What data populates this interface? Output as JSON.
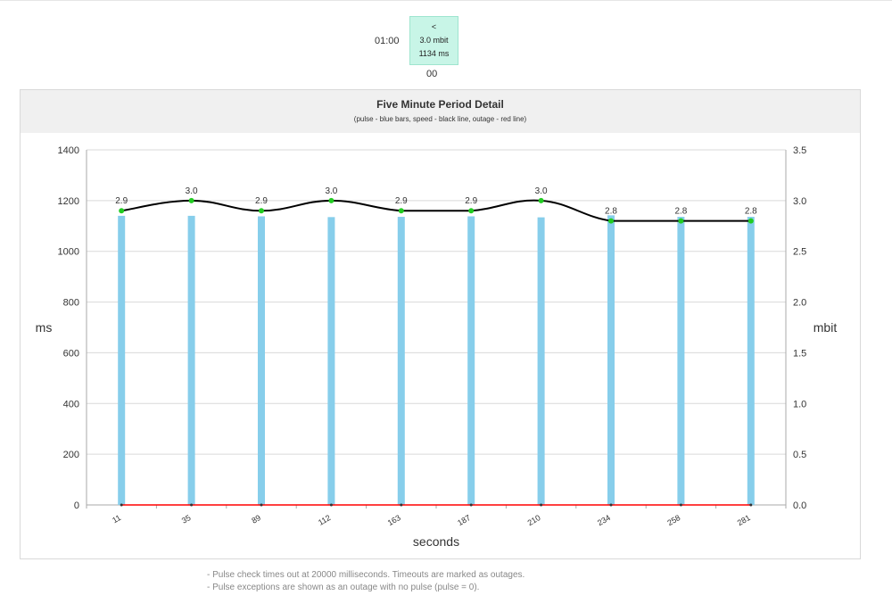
{
  "summary": {
    "time": "01:00",
    "arrow": "<",
    "speed": "3.0 mbit",
    "pulse": "1134 ms",
    "sublabel": "00",
    "color": "#c8f5e7"
  },
  "panel": {
    "title": "Five Minute Period Detail",
    "subtitle": "(pulse - blue bars, speed - black line, outage - red line)"
  },
  "chart_data": {
    "type": "bar",
    "title": "Five Minute Period Detail",
    "subtitle": "(pulse - blue bars, speed - black line, outage - red line)",
    "xlabel": "seconds",
    "ylabel": "ms",
    "ylabel_right": "mbit",
    "ylim": [
      0,
      1400
    ],
    "ylim_right": [
      0,
      3.5
    ],
    "yticks": [
      0,
      200,
      400,
      600,
      800,
      1000,
      1200,
      1400
    ],
    "yticks_right": [
      "0.0",
      "0.5",
      "1.0",
      "1.5",
      "2.0",
      "2.5",
      "3.0",
      "3.5"
    ],
    "categories": [
      "11",
      "35",
      "89",
      "112",
      "163",
      "187",
      "210",
      "234",
      "258",
      "281"
    ],
    "grid": true,
    "series": [
      {
        "name": "pulse",
        "kind": "bar",
        "axis": "left",
        "color": "#87ceeb",
        "values": [
          1140,
          1140,
          1138,
          1135,
          1136,
          1138,
          1134,
          1142,
          1136,
          1136
        ]
      },
      {
        "name": "speed",
        "kind": "line",
        "axis": "right",
        "color": "#000000",
        "marker_color": "#22cc22",
        "values": [
          2.9,
          3.0,
          2.9,
          3.0,
          2.9,
          2.9,
          3.0,
          2.8,
          2.8,
          2.8
        ],
        "labels": [
          "2.9",
          "3.0",
          "2.9",
          "3.0",
          "2.9",
          "2.9",
          "3.0",
          "2.8",
          "2.8",
          "2.8"
        ]
      },
      {
        "name": "outage",
        "kind": "line",
        "axis": "left",
        "color": "#ff0000",
        "values": [
          0,
          0,
          0,
          0,
          0,
          0,
          0,
          0,
          0,
          0
        ]
      }
    ]
  },
  "notes": [
    "- Pulse check times out at 20000 milliseconds. Timeouts are marked as outages.",
    "- Pulse exceptions are shown as an outage with no pulse (pulse = 0)."
  ]
}
